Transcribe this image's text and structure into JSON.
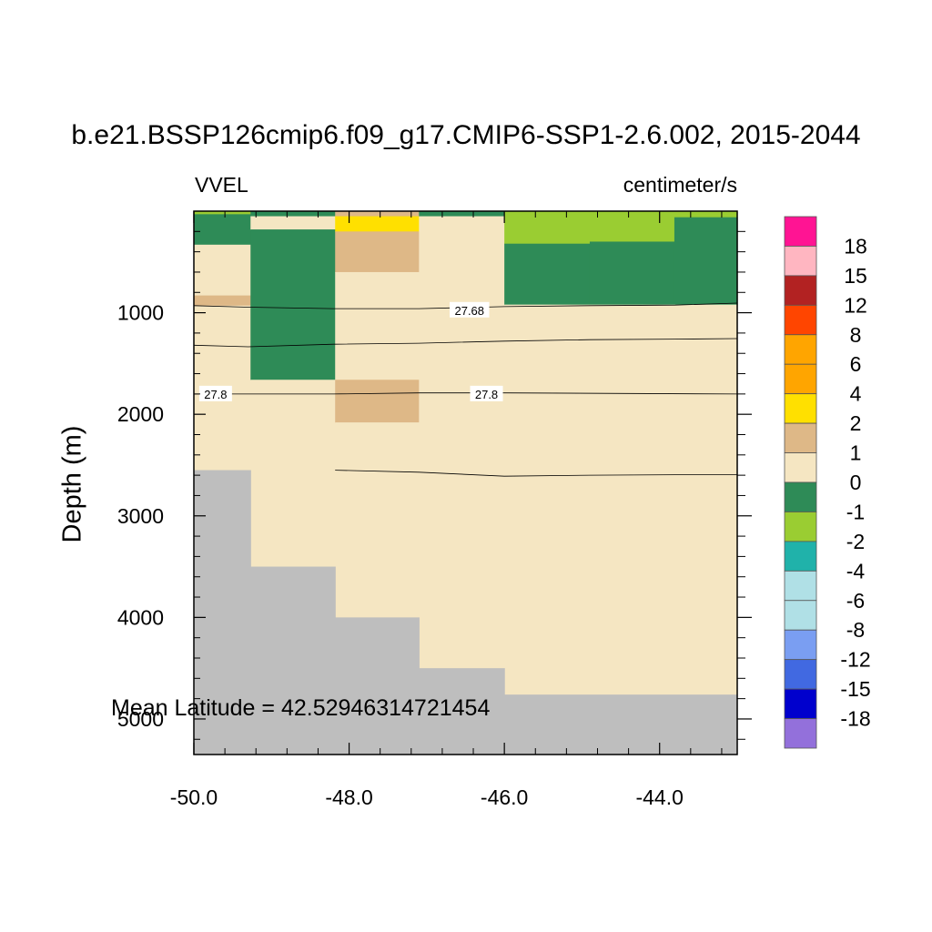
{
  "title": "b.e21.BSSP126cmip6.f09_g17.CMIP6-SSP1-2.6.002, 2015-2044",
  "left_label": "VVEL",
  "right_label": "centimeter/s",
  "footnote": "Mean Latitude = 42.52946314721454",
  "chart_data": {
    "type": "heatmap",
    "ylabel": "Depth (m)",
    "xlabel": "",
    "xlim": [
      -50.0,
      -43.0
    ],
    "ylim": [
      5350,
      0
    ],
    "x_ticks": [
      -50.0,
      -48.0,
      -46.0,
      -44.0
    ],
    "y_ticks": [
      1000,
      2000,
      3000,
      4000,
      5000
    ],
    "x_ticks_minor": [
      -49.6,
      -49.2,
      -48.8,
      -48.4,
      -47.6,
      -47.2,
      -46.8,
      -46.4,
      -45.6,
      -45.2,
      -44.8,
      -44.4,
      -43.6,
      -43.2
    ],
    "y_ticks_minor": [
      200,
      400,
      600,
      800,
      1200,
      1400,
      1600,
      1800,
      2200,
      2400,
      2600,
      2800,
      3200,
      3400,
      3600,
      3800,
      4200,
      4400,
      4600,
      4800,
      5200
    ],
    "levels": [
      -18,
      -15,
      -12,
      -8,
      -6,
      -4,
      -2,
      -1,
      0,
      1,
      2,
      4,
      6,
      8,
      12,
      15,
      18
    ],
    "colors": [
      "#9370db",
      "#0000cd",
      "#4169e1",
      "#7a9ef2",
      "#b0e0e6",
      "#b0e0e6",
      "#20b2aa",
      "#9acd32",
      "#2e8b57",
      "#f5e6c2",
      "#deb887",
      "#ffe000",
      "#ffa500",
      "#ffa500",
      "#ff4500",
      "#b22222",
      "#ffb6c1",
      "#ff1493"
    ],
    "land_color": "#bebebe",
    "cells": [
      {
        "x": [
          -50.0,
          -49.27
        ],
        "z": [
          0,
          30
        ],
        "value": -1.5
      },
      {
        "x": [
          -50.0,
          -49.27
        ],
        "z": [
          30,
          330
        ],
        "value": -0.5
      },
      {
        "x": [
          -50.0,
          -49.27
        ],
        "z": [
          330,
          830
        ],
        "value": 0.5
      },
      {
        "x": [
          -50.0,
          -49.27
        ],
        "z": [
          830,
          930
        ],
        "value": 1.5
      },
      {
        "x": [
          -50.0,
          -49.27
        ],
        "z": [
          930,
          2550
        ],
        "value": 0.5
      },
      {
        "x": [
          -49.27,
          -48.18
        ],
        "z": [
          0,
          50
        ],
        "value": -0.5
      },
      {
        "x": [
          -49.27,
          -48.18
        ],
        "z": [
          50,
          180
        ],
        "value": 0.5
      },
      {
        "x": [
          -49.27,
          -48.18
        ],
        "z": [
          180,
          1660
        ],
        "value": -0.5
      },
      {
        "x": [
          -49.27,
          -48.18
        ],
        "z": [
          1660,
          3500
        ],
        "value": 0.5
      },
      {
        "x": [
          -48.18,
          -47.1
        ],
        "z": [
          0,
          50
        ],
        "value": 1.5
      },
      {
        "x": [
          -48.18,
          -47.1
        ],
        "z": [
          50,
          200
        ],
        "value": 3
      },
      {
        "x": [
          -48.18,
          -47.1
        ],
        "z": [
          200,
          600
        ],
        "value": 1.5
      },
      {
        "x": [
          -48.18,
          -47.1
        ],
        "z": [
          600,
          1660
        ],
        "value": 0.5
      },
      {
        "x": [
          -48.18,
          -47.1
        ],
        "z": [
          1660,
          2080
        ],
        "value": 1.5
      },
      {
        "x": [
          -48.18,
          -47.1
        ],
        "z": [
          2080,
          4000
        ],
        "value": 0.5
      },
      {
        "x": [
          -47.1,
          -46.0
        ],
        "z": [
          0,
          50
        ],
        "value": -0.5
      },
      {
        "x": [
          -47.1,
          -46.0
        ],
        "z": [
          50,
          4500
        ],
        "value": 0.5
      },
      {
        "x": [
          -46.0,
          -44.9
        ],
        "z": [
          0,
          40
        ],
        "value": -1.5
      },
      {
        "x": [
          -46.0,
          -44.9
        ],
        "z": [
          40,
          320
        ],
        "value": -1.5
      },
      {
        "x": [
          -46.0,
          -44.9
        ],
        "z": [
          320,
          920
        ],
        "value": -0.5
      },
      {
        "x": [
          -46.0,
          -44.9
        ],
        "z": [
          920,
          4760
        ],
        "value": 0.5
      },
      {
        "x": [
          -44.9,
          -43.81
        ],
        "z": [
          0,
          40
        ],
        "value": -1.5
      },
      {
        "x": [
          -44.9,
          -43.81
        ],
        "z": [
          40,
          300
        ],
        "value": -1.5
      },
      {
        "x": [
          -44.9,
          -43.81
        ],
        "z": [
          300,
          920
        ],
        "value": -0.5
      },
      {
        "x": [
          -44.9,
          -43.81
        ],
        "z": [
          920,
          4760
        ],
        "value": 0.5
      },
      {
        "x": [
          -43.81,
          -43.0
        ],
        "z": [
          0,
          60
        ],
        "value": -1.5
      },
      {
        "x": [
          -43.81,
          -43.0
        ],
        "z": [
          60,
          920
        ],
        "value": -0.5
      },
      {
        "x": [
          -43.81,
          -43.0
        ],
        "z": [
          920,
          4760
        ],
        "value": 0.5
      }
    ],
    "land": [
      {
        "x": [
          -50.0,
          -49.27
        ],
        "z": [
          2550,
          5350
        ]
      },
      {
        "x": [
          -49.27,
          -48.18
        ],
        "z": [
          3500,
          5350
        ]
      },
      {
        "x": [
          -48.18,
          -47.1
        ],
        "z": [
          4000,
          5350
        ]
      },
      {
        "x": [
          -47.1,
          -46.0
        ],
        "z": [
          4500,
          5350
        ]
      },
      {
        "x": [
          -46.0,
          -43.0
        ],
        "z": [
          4760,
          5350
        ]
      }
    ],
    "contours": [
      {
        "label": "27.68",
        "label_at": [
          -46.45,
          975
        ],
        "points": [
          [
            -50.0,
            930
          ],
          [
            -49.3,
            945
          ],
          [
            -48.2,
            960
          ],
          [
            -47.1,
            960
          ],
          [
            -46.0,
            940
          ],
          [
            -44.9,
            930
          ],
          [
            -43.8,
            925
          ],
          [
            -43.0,
            905
          ]
        ]
      },
      {
        "label": "",
        "points": [
          [
            -50.0,
            1320
          ],
          [
            -49.3,
            1335
          ],
          [
            -48.2,
            1310
          ],
          [
            -47.1,
            1300
          ],
          [
            -46.0,
            1280
          ],
          [
            -44.9,
            1265
          ],
          [
            -43.8,
            1260
          ],
          [
            -43.0,
            1255
          ]
        ]
      },
      {
        "label": "27.8",
        "label_at": [
          -49.72,
          1800
        ],
        "points": [
          [
            -50.0,
            1800
          ],
          [
            -48.2,
            1800
          ],
          [
            -47.1,
            1790
          ],
          [
            -46.0,
            1790
          ],
          [
            -43.0,
            1800
          ]
        ]
      },
      {
        "label": "27.8",
        "label_at": [
          -46.23,
          1800
        ],
        "points": []
      },
      {
        "label": "",
        "points": [
          [
            -48.18,
            2550
          ],
          [
            -47.1,
            2570
          ],
          [
            -46.0,
            2610
          ],
          [
            -44.9,
            2600
          ],
          [
            -43.8,
            2595
          ],
          [
            -43.0,
            2595
          ]
        ]
      }
    ],
    "colorbar": {
      "labels": [
        "18",
        "15",
        "12",
        "8",
        "6",
        "4",
        "2",
        "1",
        "0",
        "-1",
        "-2",
        "-4",
        "-6",
        "-8",
        "-12",
        "-15",
        "-18"
      ],
      "box_colors_top_to_bottom": [
        "#ff1493",
        "#ffb6c1",
        "#b22222",
        "#ff4500",
        "#ffa500",
        "#ffa500",
        "#ffe000",
        "#deb887",
        "#f5e6c2",
        "#2e8b57",
        "#9acd32",
        "#20b2aa",
        "#b0e0e6",
        "#b0e0e6",
        "#7a9ef2",
        "#4169e1",
        "#0000cd",
        "#9370db"
      ]
    }
  }
}
